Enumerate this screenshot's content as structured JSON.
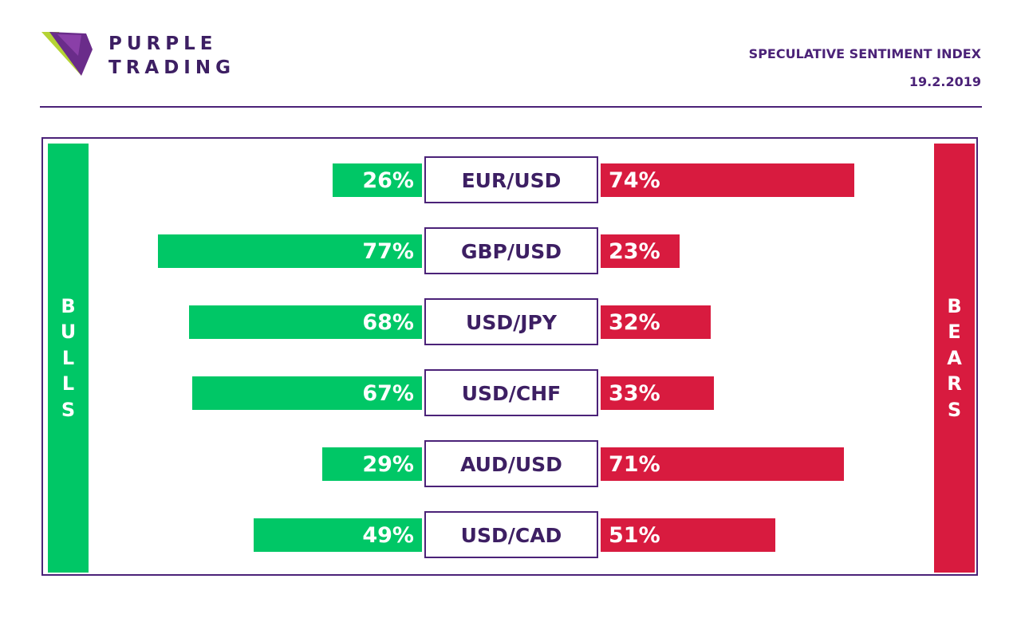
{
  "brand": {
    "line1": "PURPLE",
    "line2": "TRADING"
  },
  "header": {
    "title": "SPECULATIVE SENTIMENT INDEX",
    "date": "19.2.2019"
  },
  "colors": {
    "bull": "#00c766",
    "bear": "#d81b3f",
    "purple": "#4b2278"
  },
  "side_labels": {
    "bulls": "BULLS",
    "bears": "BEARS"
  },
  "chart_data": {
    "type": "bar",
    "categories": [
      "EUR/USD",
      "GBP/USD",
      "USD/JPY",
      "USD/CHF",
      "AUD/USD",
      "USD/CAD"
    ],
    "series": [
      {
        "name": "BULLS",
        "values": [
          26,
          77,
          68,
          67,
          29,
          49
        ],
        "labels": [
          "26%",
          "77%",
          "68%",
          "67%",
          "29%",
          "49%"
        ]
      },
      {
        "name": "BEARS",
        "values": [
          74,
          23,
          32,
          33,
          71,
          51
        ],
        "labels": [
          "74%",
          "23%",
          "32%",
          "33%",
          "71%",
          "51%"
        ]
      }
    ],
    "ylim": [
      0,
      100
    ]
  }
}
